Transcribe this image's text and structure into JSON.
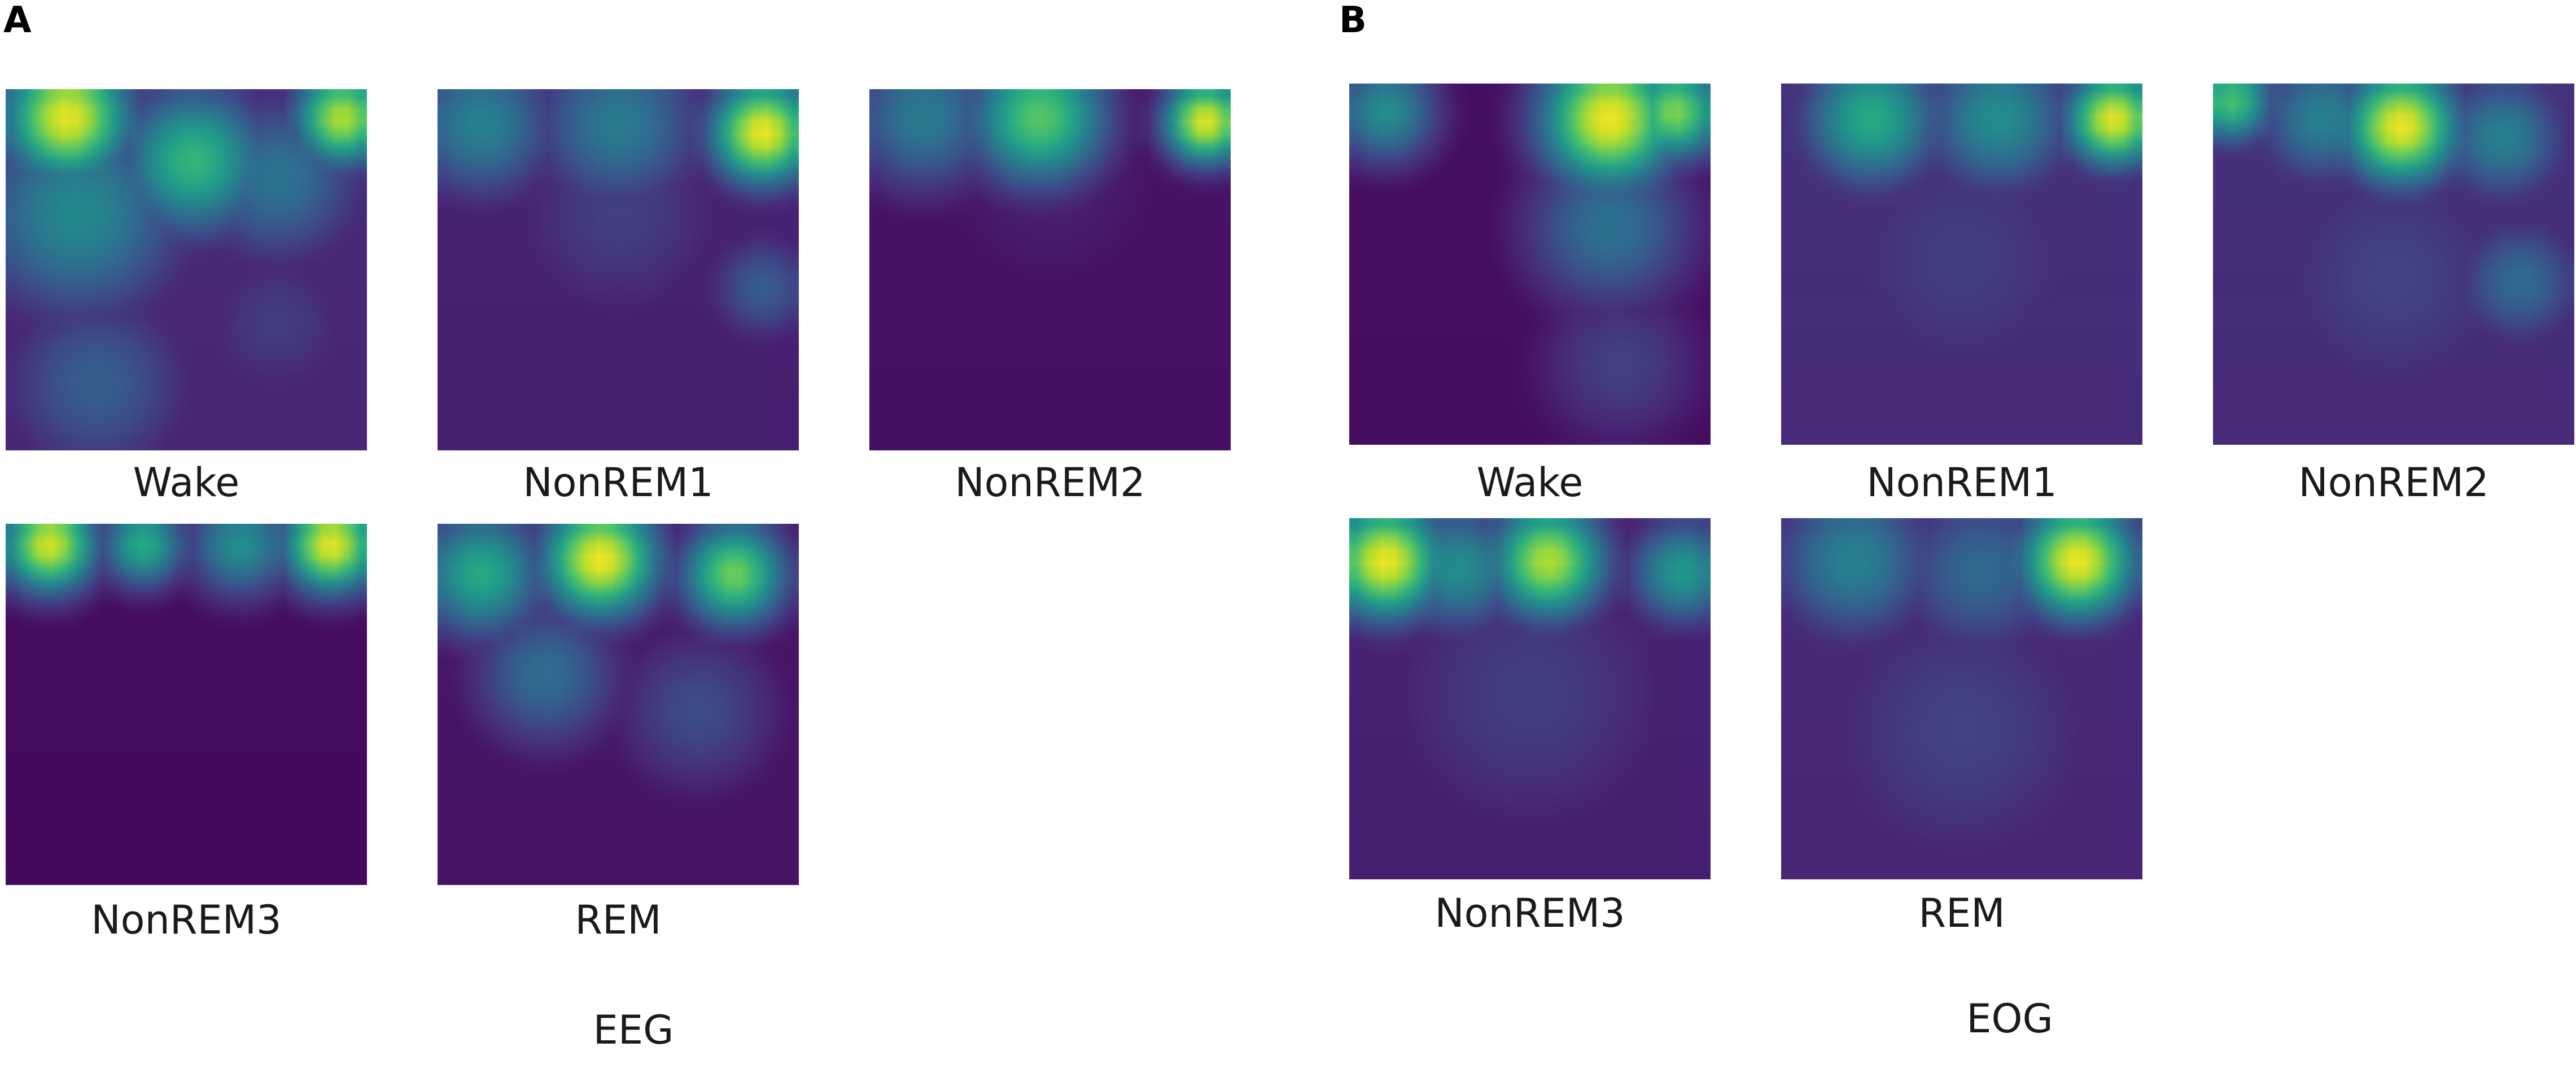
{
  "chart_data": [
    {
      "type": "heatmap",
      "panel": "A",
      "signal": "EEG",
      "colormap": "viridis",
      "grid": false,
      "maps": [
        {
          "label": "Wake",
          "background": 0.12,
          "blobs": [
            {
              "x": 0.17,
              "y": 0.08,
              "r": 0.12,
              "v": 0.98
            },
            {
              "x": 0.93,
              "y": 0.08,
              "r": 0.09,
              "v": 0.9
            },
            {
              "x": 0.52,
              "y": 0.2,
              "r": 0.14,
              "v": 0.68
            },
            {
              "x": 0.2,
              "y": 0.35,
              "r": 0.2,
              "v": 0.5
            },
            {
              "x": 0.25,
              "y": 0.82,
              "r": 0.18,
              "v": 0.34
            },
            {
              "x": 0.75,
              "y": 0.25,
              "r": 0.16,
              "v": 0.4
            },
            {
              "x": 0.75,
              "y": 0.65,
              "r": 0.16,
              "v": 0.2
            }
          ]
        },
        {
          "label": "NonREM1",
          "background": 0.1,
          "blobs": [
            {
              "x": 0.9,
              "y": 0.12,
              "r": 0.1,
              "v": 1.0
            },
            {
              "x": 0.12,
              "y": 0.1,
              "r": 0.14,
              "v": 0.45
            },
            {
              "x": 0.5,
              "y": 0.1,
              "r": 0.16,
              "v": 0.42
            },
            {
              "x": 0.9,
              "y": 0.55,
              "r": 0.1,
              "v": 0.32
            },
            {
              "x": 0.5,
              "y": 0.35,
              "r": 0.22,
              "v": 0.2
            }
          ]
        },
        {
          "label": "NonREM2",
          "background": 0.05,
          "blobs": [
            {
              "x": 0.93,
              "y": 0.09,
              "r": 0.08,
              "v": 0.98
            },
            {
              "x": 0.47,
              "y": 0.08,
              "r": 0.13,
              "v": 0.75
            },
            {
              "x": 0.15,
              "y": 0.08,
              "r": 0.14,
              "v": 0.42
            },
            {
              "x": 0.5,
              "y": 0.25,
              "r": 0.25,
              "v": 0.1
            }
          ]
        },
        {
          "label": "NonREM3",
          "background": 0.03,
          "blobs": [
            {
              "x": 0.12,
              "y": 0.06,
              "r": 0.09,
              "v": 0.95
            },
            {
              "x": 0.9,
              "y": 0.06,
              "r": 0.09,
              "v": 0.98
            },
            {
              "x": 0.38,
              "y": 0.06,
              "r": 0.08,
              "v": 0.62
            },
            {
              "x": 0.65,
              "y": 0.06,
              "r": 0.1,
              "v": 0.5
            }
          ]
        },
        {
          "label": "REM",
          "background": 0.06,
          "blobs": [
            {
              "x": 0.45,
              "y": 0.1,
              "r": 0.11,
              "v": 1.0
            },
            {
              "x": 0.82,
              "y": 0.14,
              "r": 0.1,
              "v": 0.8
            },
            {
              "x": 0.12,
              "y": 0.14,
              "r": 0.12,
              "v": 0.62
            },
            {
              "x": 0.3,
              "y": 0.42,
              "r": 0.14,
              "v": 0.38
            },
            {
              "x": 0.72,
              "y": 0.52,
              "r": 0.16,
              "v": 0.25
            }
          ]
        }
      ]
    },
    {
      "type": "heatmap",
      "panel": "B",
      "signal": "EOG",
      "colormap": "viridis",
      "grid": false,
      "maps": [
        {
          "label": "Wake",
          "background": 0.04,
          "blobs": [
            {
              "x": 0.72,
              "y": 0.1,
              "r": 0.13,
              "v": 1.0
            },
            {
              "x": 0.9,
              "y": 0.08,
              "r": 0.09,
              "v": 0.82
            },
            {
              "x": 0.1,
              "y": 0.08,
              "r": 0.1,
              "v": 0.5
            },
            {
              "x": 0.72,
              "y": 0.4,
              "r": 0.16,
              "v": 0.4
            },
            {
              "x": 0.75,
              "y": 0.78,
              "r": 0.16,
              "v": 0.22
            }
          ]
        },
        {
          "label": "NonREM1",
          "background": 0.14,
          "blobs": [
            {
              "x": 0.92,
              "y": 0.1,
              "r": 0.09,
              "v": 0.98
            },
            {
              "x": 0.25,
              "y": 0.1,
              "r": 0.13,
              "v": 0.62
            },
            {
              "x": 0.6,
              "y": 0.1,
              "r": 0.14,
              "v": 0.5
            },
            {
              "x": 0.5,
              "y": 0.5,
              "r": 0.3,
              "v": 0.2
            }
          ]
        },
        {
          "label": "NonREM2",
          "background": 0.14,
          "blobs": [
            {
              "x": 0.52,
              "y": 0.12,
              "r": 0.11,
              "v": 1.0
            },
            {
              "x": 0.05,
              "y": 0.05,
              "r": 0.08,
              "v": 0.72
            },
            {
              "x": 0.3,
              "y": 0.1,
              "r": 0.12,
              "v": 0.45
            },
            {
              "x": 0.8,
              "y": 0.15,
              "r": 0.12,
              "v": 0.45
            },
            {
              "x": 0.85,
              "y": 0.55,
              "r": 0.12,
              "v": 0.38
            },
            {
              "x": 0.5,
              "y": 0.55,
              "r": 0.28,
              "v": 0.22
            }
          ]
        },
        {
          "label": "NonREM3",
          "background": 0.1,
          "blobs": [
            {
              "x": 0.1,
              "y": 0.12,
              "r": 0.11,
              "v": 1.0
            },
            {
              "x": 0.55,
              "y": 0.12,
              "r": 0.11,
              "v": 0.9
            },
            {
              "x": 0.92,
              "y": 0.15,
              "r": 0.1,
              "v": 0.55
            },
            {
              "x": 0.3,
              "y": 0.14,
              "r": 0.12,
              "v": 0.5
            },
            {
              "x": 0.5,
              "y": 0.5,
              "r": 0.3,
              "v": 0.2
            }
          ]
        },
        {
          "label": "REM",
          "background": 0.12,
          "blobs": [
            {
              "x": 0.82,
              "y": 0.12,
              "r": 0.11,
              "v": 1.0
            },
            {
              "x": 0.2,
              "y": 0.12,
              "r": 0.15,
              "v": 0.45
            },
            {
              "x": 0.55,
              "y": 0.15,
              "r": 0.16,
              "v": 0.35
            },
            {
              "x": 0.5,
              "y": 0.6,
              "r": 0.3,
              "v": 0.22
            }
          ]
        }
      ]
    }
  ]
}
